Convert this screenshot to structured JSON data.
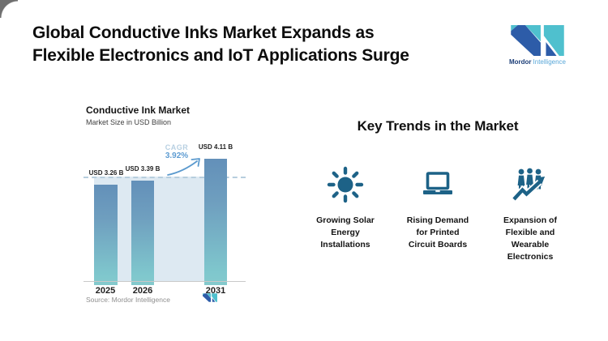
{
  "header": {
    "title": "Global Conductive Inks Market Expands as\nFlexible Electronics and IoT Applications Surge"
  },
  "logo": {
    "brand_bold": "Mordor",
    "brand_light": "Intelligence",
    "colors": {
      "teal": "#4FC0CE",
      "blue": "#2D5CA8",
      "wordmark_dark": "#1C3E78",
      "wordmark_light": "#58A7D8"
    }
  },
  "chart_data": {
    "type": "bar",
    "title": "Conductive Ink Market",
    "subtitle": "Market Size in USD Billion",
    "categories": [
      "2025",
      "2026",
      "2031"
    ],
    "values": [
      3.26,
      3.39,
      4.11
    ],
    "bar_labels": [
      "USD 3.26 B",
      "USD 3.39 B",
      "USD 4.11 B"
    ],
    "unit": "USD Billion",
    "ylim": [
      0,
      4.6
    ],
    "cagr_label": "CAGR",
    "cagr_value": "3.92%",
    "dashed_reference_value": 3.39,
    "grid": false,
    "legend": "none",
    "source": "Source: Mordor Intelligence",
    "colors": {
      "bar_top": "#6390B9",
      "bar_bottom": "#7FC7CD",
      "backdrop": "#DDE9F2",
      "dashed_line": "#B7CEDE",
      "cagr_light": "#B8D0E2",
      "cagr_strong": "#5E9CD2",
      "arrow": "#5B9ACE"
    }
  },
  "trends": {
    "heading": "Key Trends in the Market",
    "icon_color": "#1D6287",
    "items": [
      {
        "icon": "sun-icon",
        "label": "Growing Solar\nEnergy\nInstallations"
      },
      {
        "icon": "laptop-icon",
        "label": "Rising Demand\nfor Printed\nCircuit Boards"
      },
      {
        "icon": "people-growth-icon",
        "label": "Expansion of\nFlexible and\nWearable\nElectronics"
      }
    ]
  }
}
